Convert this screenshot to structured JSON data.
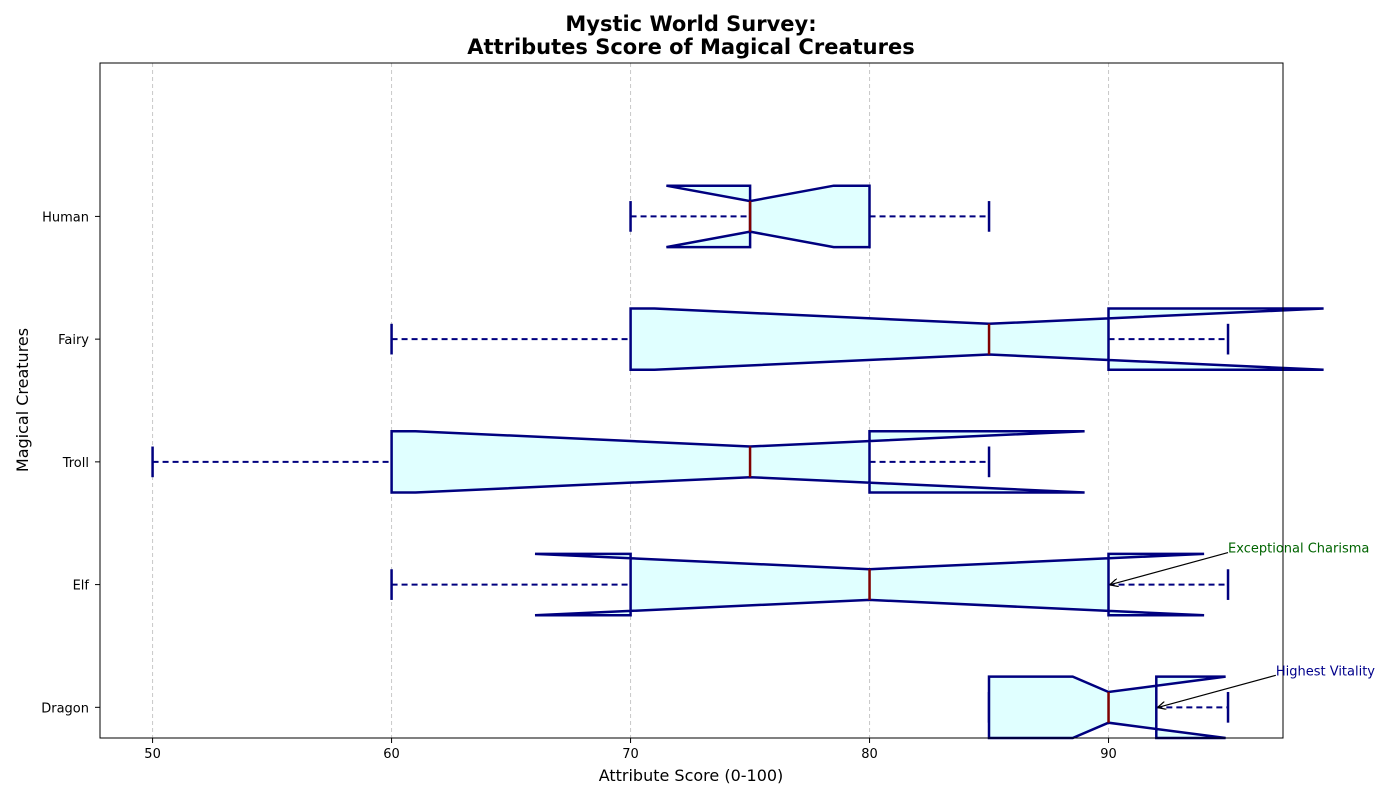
{
  "chart_data": {
    "type": "boxplot",
    "orientation": "horizontal",
    "notched": true,
    "title_lines": [
      "Mystic World Survey:",
      "Attributes Score of Magical Creatures"
    ],
    "xlabel": "Attribute Score (0-100)",
    "ylabel": "Magical Creatures",
    "xlim": [
      47.8,
      97.3
    ],
    "x_ticks": [
      50,
      60,
      70,
      80,
      90
    ],
    "grid": "x-dashed",
    "colors": {
      "box_edge": "#00007f",
      "box_fill": "#e0ffff",
      "median": "#800000",
      "grid": "#c8c8c8",
      "annotation_charisma": "#006400",
      "annotation_vitality": "#00008b"
    },
    "categories": [
      "Dragon",
      "Elf",
      "Troll",
      "Fairy",
      "Human"
    ],
    "series": [
      {
        "category": "Dragon",
        "whisker_low": 85,
        "q1": 85,
        "median": 90,
        "q3": 92,
        "whisker_high": 95,
        "notch_low": 88.5,
        "notch_high": 94.9
      },
      {
        "category": "Elf",
        "whisker_low": 60,
        "q1": 70,
        "median": 80,
        "q3": 90,
        "whisker_high": 95,
        "notch_low": 66,
        "notch_high": 94
      },
      {
        "category": "Troll",
        "whisker_low": 50,
        "q1": 60,
        "median": 75,
        "q3": 80,
        "whisker_high": 85,
        "notch_low": 61,
        "notch_high": 89
      },
      {
        "category": "Fairy",
        "whisker_low": 60,
        "q1": 70,
        "median": 85,
        "q3": 90,
        "whisker_high": 95,
        "notch_low": 71,
        "notch_high": 99
      },
      {
        "category": "Human",
        "whisker_low": 70,
        "q1": 75,
        "median": 75,
        "q3": 80,
        "whisker_high": 85,
        "notch_low": 71.5,
        "notch_high": 78.5
      }
    ],
    "annotations": [
      {
        "text": "Exceptional Charisma",
        "category": "Elf",
        "point_x": 90,
        "color_key": "annotation_charisma"
      },
      {
        "text": "Highest Vitality",
        "category": "Dragon",
        "point_x": 92,
        "color_key": "annotation_vitality"
      }
    ]
  }
}
